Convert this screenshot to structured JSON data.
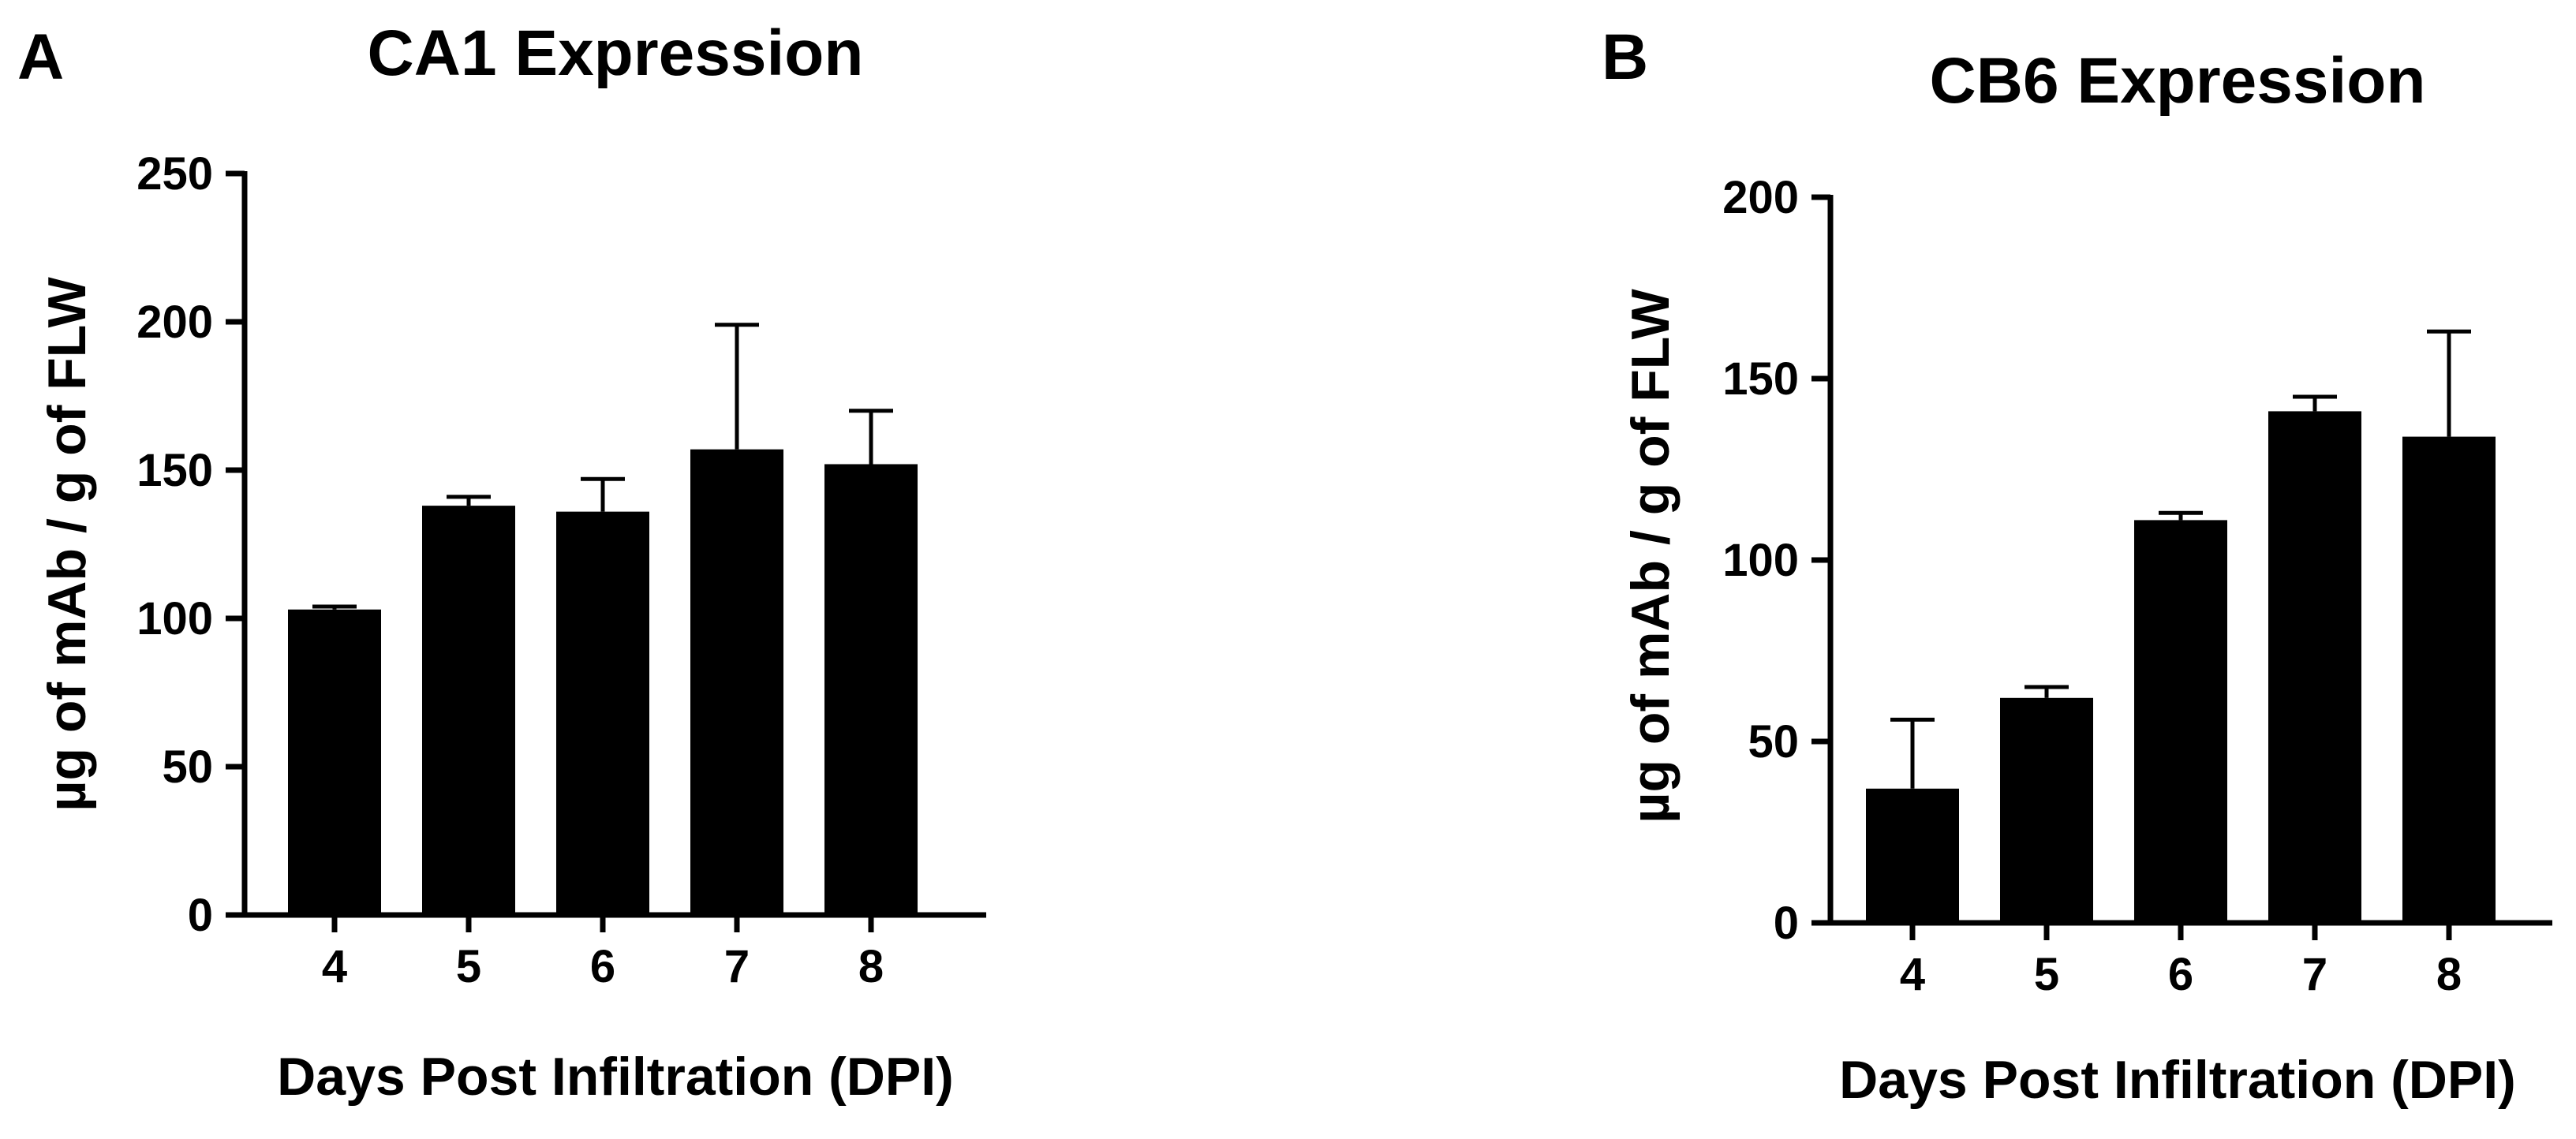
{
  "colors": {
    "bars": "#000000",
    "background": "#ffffff"
  },
  "chart_data": [
    {
      "panel": "A",
      "type": "bar",
      "title": "CA1 Expression",
      "xlabel": "Days Post Infiltration (DPI)",
      "ylabel": "µg of mAb / g of FLW",
      "categories": [
        "4",
        "5",
        "6",
        "7",
        "8"
      ],
      "values": [
        103,
        138,
        136,
        157,
        152
      ],
      "error_upper": [
        104,
        141,
        147,
        199,
        170
      ],
      "ylim": [
        0,
        250
      ],
      "yticks": [
        0,
        50,
        100,
        150,
        200,
        250
      ],
      "ytick_labels": [
        "0",
        "50",
        "100",
        "150",
        "200",
        "250"
      ]
    },
    {
      "panel": "B",
      "type": "bar",
      "title": "CB6 Expression",
      "xlabel": "Days Post Infiltration (DPI)",
      "ylabel": "µg of mAb / g of FLW",
      "categories": [
        "4",
        "5",
        "6",
        "7",
        "8"
      ],
      "values": [
        37,
        62,
        111,
        141,
        134
      ],
      "error_upper": [
        56,
        65,
        113,
        145,
        163
      ],
      "ylim": [
        0,
        200
      ],
      "yticks": [
        0,
        50,
        100,
        150,
        200
      ],
      "ytick_labels": [
        "0",
        "50",
        "100",
        "150",
        "200"
      ]
    }
  ]
}
